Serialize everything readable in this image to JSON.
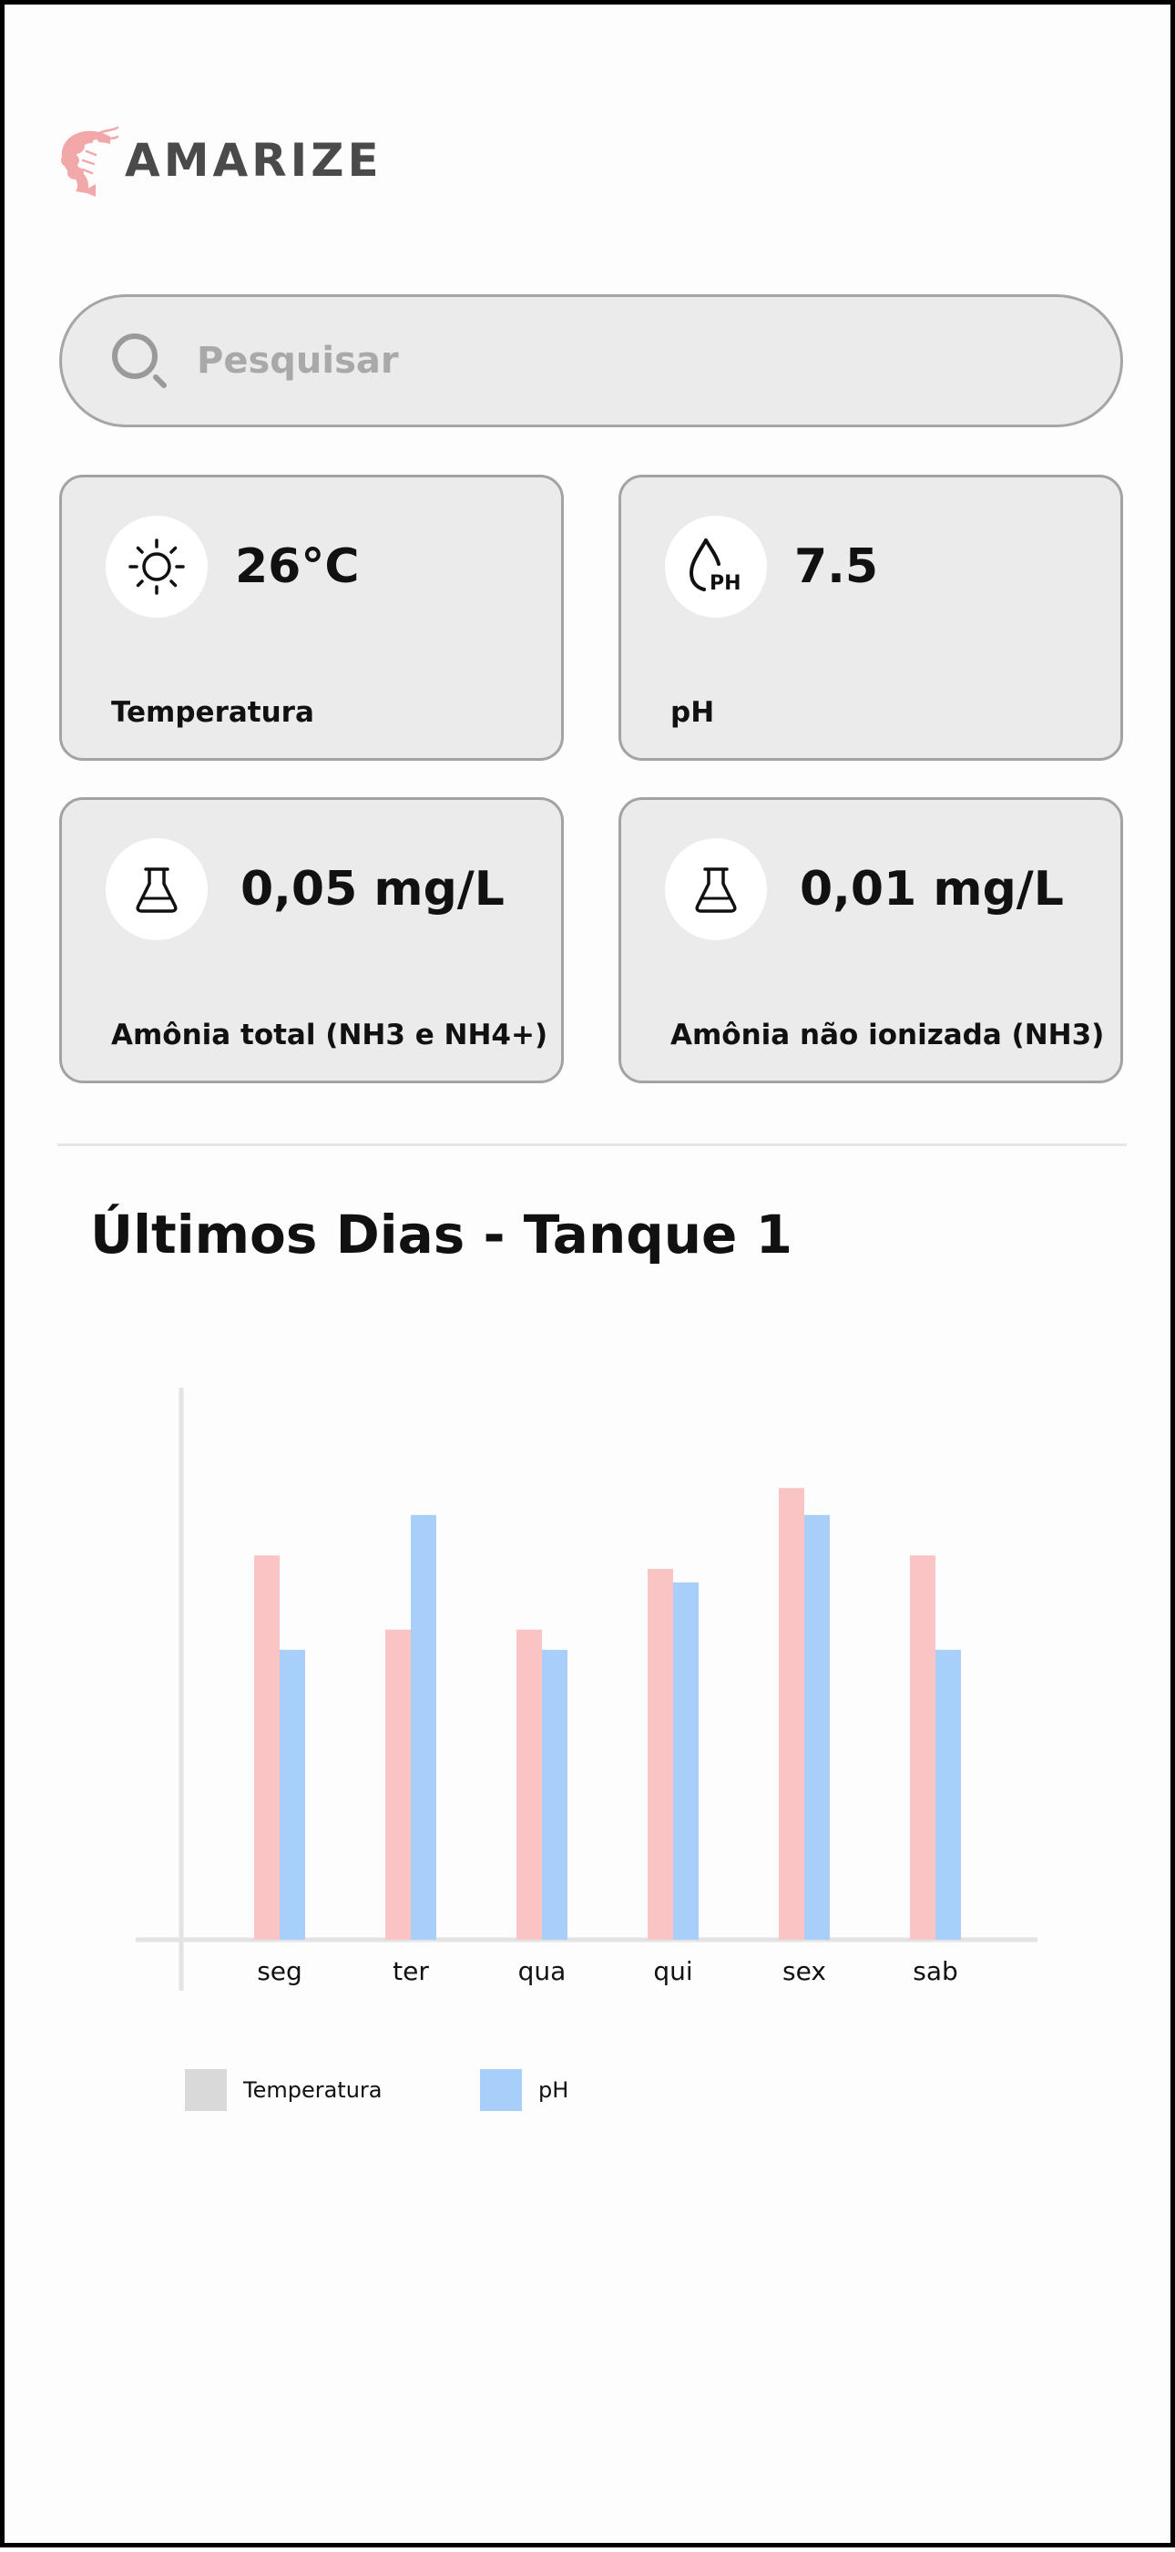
{
  "app": {
    "brand_name": "AMARIZE",
    "brand_color": "#f2a8a8"
  },
  "search": {
    "placeholder": "Pesquisar",
    "value": "",
    "icon": "search-icon"
  },
  "metrics": [
    {
      "id": "temperatura",
      "value": "26°C",
      "label": "Temperatura",
      "icon": "sun-icon"
    },
    {
      "id": "ph",
      "value": "7.5",
      "label": "pH",
      "icon": "ph-drop-icon"
    },
    {
      "id": "amonia-total",
      "value": "0,05 mg/L",
      "label": "Amônia total (NH3 e NH4+)",
      "icon": "flask-icon"
    },
    {
      "id": "amonia-nao-ionizada",
      "value": "0,01 mg/L",
      "label": "Amônia não ionizada (NH3)",
      "icon": "flask-icon"
    }
  ],
  "chart": {
    "title": "Últimos Dias - Tanque 1"
  },
  "chart_data": {
    "type": "bar",
    "categories": [
      "seg",
      "ter",
      "qua",
      "qui",
      "sex",
      "sab"
    ],
    "series": [
      {
        "name": "Temperatura",
        "values": [
          0.57,
          0.46,
          0.46,
          0.55,
          0.67,
          0.57
        ],
        "color": "#fbc4c4"
      },
      {
        "name": "pH",
        "values": [
          0.43,
          0.63,
          0.43,
          0.53,
          0.63,
          0.43
        ],
        "color": "#a8cff9"
      }
    ],
    "ylim": [
      0,
      1
    ],
    "grid": false,
    "legend": [
      {
        "label": "Temperatura",
        "swatch_color": "#d9d9d9"
      },
      {
        "label": "pH",
        "swatch_color": "#a8cff9"
      }
    ],
    "legend_position": "bottom-left"
  }
}
